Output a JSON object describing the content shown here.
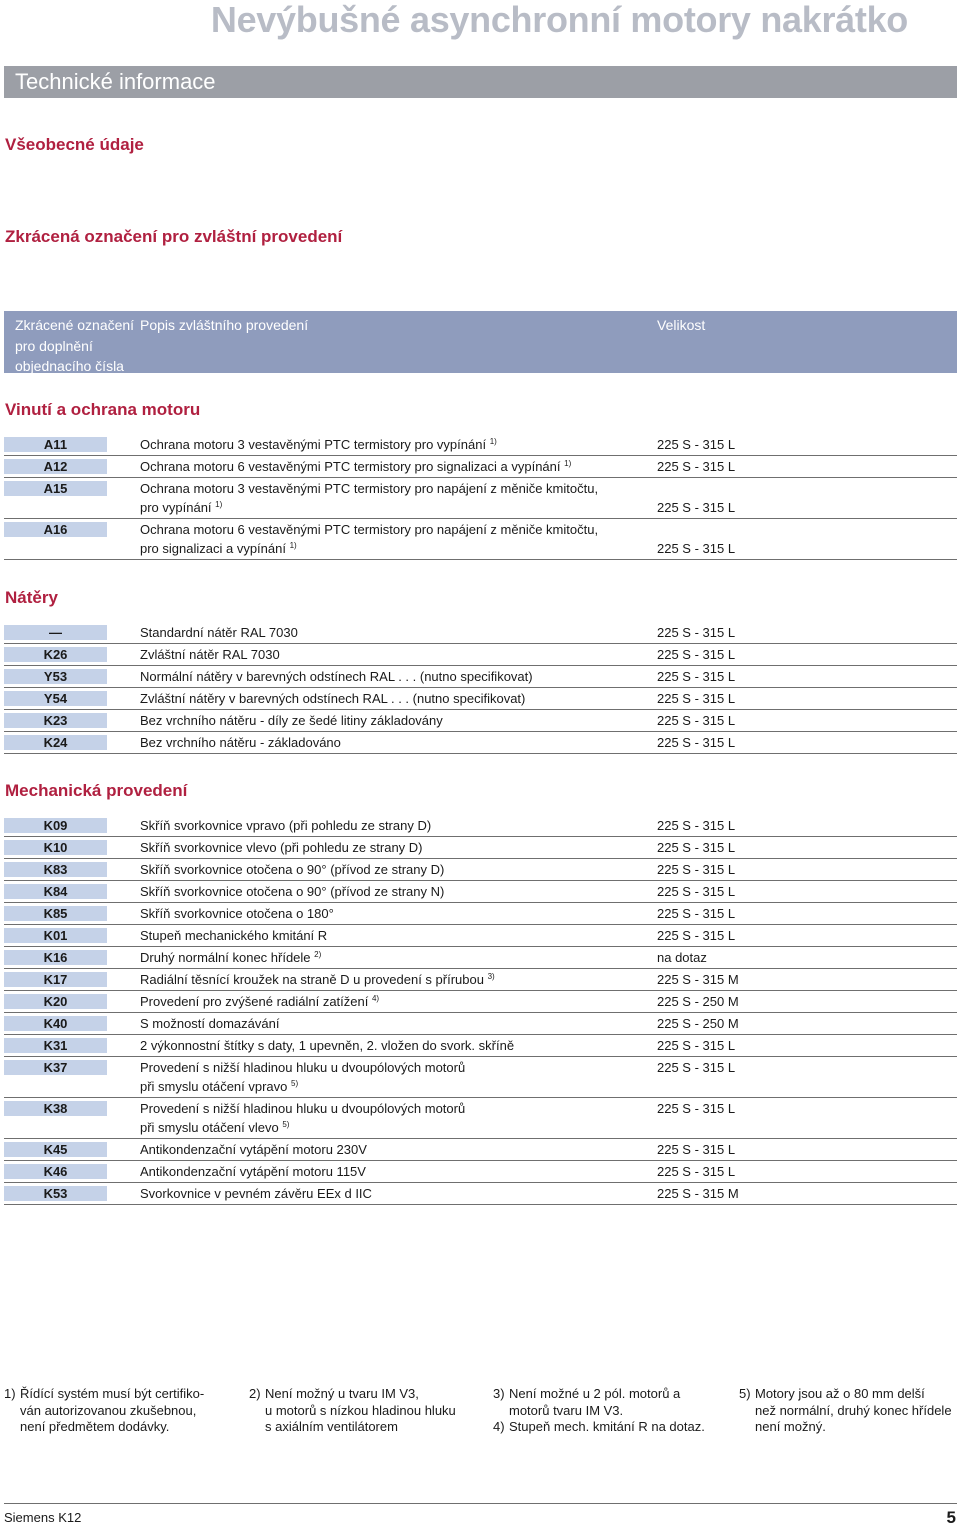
{
  "header": {
    "title": "Nevýbušné asynchronní motory nakrátko",
    "bar": "Technické informace"
  },
  "headings": {
    "general": "Všeobecné údaje",
    "special": "Zkrácená označení pro zvláštní provedení"
  },
  "table_header": {
    "col1": [
      "Zkrácené označení",
      "pro doplnění",
      "objednacího čísla"
    ],
    "col2": "Popis zvláštního provedení",
    "col3": "Velikost"
  },
  "sections": [
    {
      "title": "Vinutí a ochrana motoru",
      "rows": [
        {
          "code": "A11",
          "lines": [
            "Ochrana motoru 3 vestavěnými PTC termistory pro vypínání"
          ],
          "sup": "1)",
          "size": "225 S - 315 L"
        },
        {
          "code": "A12",
          "lines": [
            "Ochrana motoru 6 vestavěnými PTC termistory pro signalizaci a vypínání"
          ],
          "sup": "1)",
          "size": "225 S - 315 L"
        },
        {
          "code": "A15",
          "lines": [
            "Ochrana motoru 3 vestavěnými PTC termistory pro napájení z měniče kmitočtu,",
            "pro vypínání"
          ],
          "sup": "1)",
          "size": "225 S - 315 L"
        },
        {
          "code": "A16",
          "lines": [
            "Ochrana motoru 6 vestavěnými PTC termistory pro napájení z měniče kmitočtu,",
            "pro signalizaci a vypínání"
          ],
          "sup": "1)",
          "size": "225 S - 315 L"
        }
      ]
    },
    {
      "title": "Nátěry",
      "rows": [
        {
          "code": "—",
          "lines": [
            "Standardní nátěr RAL 7030"
          ],
          "sup": "",
          "size": "225 S - 315 L"
        },
        {
          "code": "K26",
          "lines": [
            "Zvláštní nátěr RAL 7030"
          ],
          "sup": "",
          "size": "225 S - 315 L"
        },
        {
          "code": "Y53",
          "lines": [
            "Normální nátěry v barevných odstínech RAL . . . (nutno specifikovat)"
          ],
          "sup": "",
          "size": "225 S - 315 L"
        },
        {
          "code": "Y54",
          "lines": [
            "Zvláštní nátěry v barevných odstínech RAL . . . (nutno specifikovat)"
          ],
          "sup": "",
          "size": "225 S - 315 L"
        },
        {
          "code": "K23",
          "lines": [
            "Bez vrchního nátěru - díly ze šedé litiny základovány"
          ],
          "sup": "",
          "size": "225 S - 315 L"
        },
        {
          "code": "K24",
          "lines": [
            "Bez vrchního nátěru - základováno"
          ],
          "sup": "",
          "size": "225 S - 315 L"
        }
      ]
    },
    {
      "title": "Mechanická provedení",
      "rows": [
        {
          "code": "K09",
          "lines": [
            "Skříň svorkovnice vpravo (při pohledu ze strany D)"
          ],
          "sup": "",
          "size": "225 S - 315 L"
        },
        {
          "code": "K10",
          "lines": [
            "Skříň svorkovnice vlevo (při pohledu ze strany D)"
          ],
          "sup": "",
          "size": "225 S - 315 L"
        },
        {
          "code": "K83",
          "lines": [
            "Skříň svorkovnice otočena o 90° (přívod ze strany D)"
          ],
          "sup": "",
          "size": "225 S - 315 L"
        },
        {
          "code": "K84",
          "lines": [
            "Skříň svorkovnice otočena o 90° (přívod ze strany N)"
          ],
          "sup": "",
          "size": "225 S - 315 L"
        },
        {
          "code": "K85",
          "lines": [
            "Skříň svorkovnice otočena o 180°"
          ],
          "sup": "",
          "size": "225 S - 315 L"
        },
        {
          "code": "K01",
          "lines": [
            "Stupeň mechanického kmitání R"
          ],
          "sup": "",
          "size": "225 S - 315 L"
        },
        {
          "code": "K16",
          "lines": [
            "Druhý normální konec hřídele"
          ],
          "sup": "2)",
          "size": "na dotaz"
        },
        {
          "code": "K17",
          "lines": [
            "Radiální těsnící kroužek na straně  D u provedení s přírubou"
          ],
          "sup": "3)",
          "size": "225 S - 315 M"
        },
        {
          "code": "K20",
          "lines": [
            "Provedení pro zvýšené radiální zatížení"
          ],
          "sup": "4)",
          "size": "225 S - 250 M"
        },
        {
          "code": "K40",
          "lines": [
            "S možností domazávání"
          ],
          "sup": "",
          "size": "225 S - 250 M"
        },
        {
          "code": "K31",
          "lines": [
            "2 výkonnostní štítky s daty, 1 upevněn, 2. vložen do svork. skříně"
          ],
          "sup": "",
          "size": "225 S - 315 L"
        },
        {
          "code": "K37",
          "lines": [
            "Provedení s nižší hladinou hluku u dvoupólových motorů",
            "při smyslu otáčení vpravo"
          ],
          "sup": "5)",
          "size": "225 S - 315 L"
        },
        {
          "code": "K38",
          "lines": [
            "Provedení s nižší hladinou hluku u dvoupólových motorů",
            "při smyslu otáčení vlevo"
          ],
          "sup": "5)",
          "size": "225 S - 315 L"
        },
        {
          "code": "K45",
          "lines": [
            "Antikondenzační vytápění motoru 230V"
          ],
          "sup": "",
          "size": "225 S - 315 L"
        },
        {
          "code": "K46",
          "lines": [
            "Antikondenzační vytápění motoru 115V"
          ],
          "sup": "",
          "size": "225 S - 315 L"
        },
        {
          "code": "K53",
          "lines": [
            "Svorkovnice v pevném závěru EEx d IIC"
          ],
          "sup": "",
          "size": "225 S - 315 M"
        }
      ]
    }
  ],
  "footnotes": [
    {
      "num": "1)",
      "lines": [
        "Řídící systém musí být certifiko-",
        "ván autorizovanou zkušebnou,",
        "není předmětem dodávky."
      ]
    },
    {
      "num": "2)",
      "lines": [
        "Není možný u tvaru IM V3,",
        "u  motorů s nízkou hladinou hluku",
        "s axiálním ventilátorem"
      ]
    },
    {
      "num": "3)",
      "lines": [
        "Není možné u 2 pól. motorů a",
        "motorů tvaru IM V3."
      ]
    },
    {
      "num": "4)",
      "lines": [
        "Stupeň mech. kmitání R na dotaz."
      ]
    },
    {
      "num": "5)",
      "lines": [
        "Motory jsou až o 80 mm delší",
        "než normální, druhý konec hřídele",
        "není možný."
      ]
    }
  ],
  "footer": {
    "left": "Siemens K12",
    "page": "5"
  }
}
